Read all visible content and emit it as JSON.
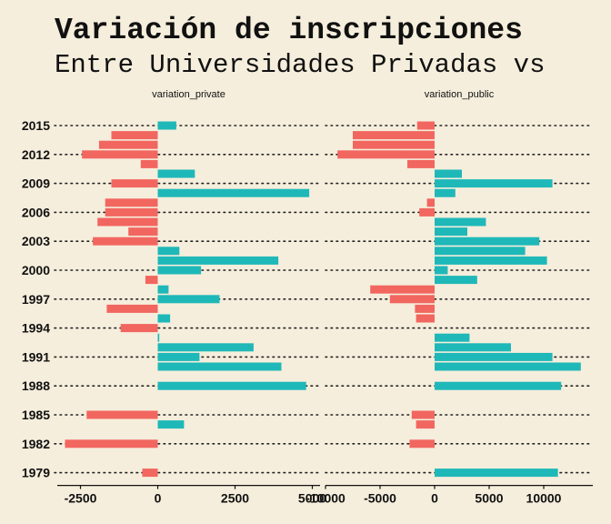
{
  "chart_data": {
    "type": "bar",
    "orientation": "horizontal",
    "title": "Variación de inscripciones",
    "subtitle": "Entre Universidades Privadas vs",
    "y": [
      2015,
      2014,
      2013,
      2012,
      2011,
      2010,
      2009,
      2008,
      2007,
      2006,
      2005,
      2004,
      2003,
      2002,
      2001,
      2000,
      1999,
      1998,
      1997,
      1996,
      1995,
      1994,
      1993,
      1992,
      1991,
      1990,
      1989,
      1988,
      1987,
      1986,
      1985,
      1984,
      1983,
      1982,
      1981,
      1980,
      1979
    ],
    "y_ticks": [
      2015,
      2012,
      2009,
      2006,
      2003,
      2000,
      1997,
      1994,
      1991,
      1988,
      1985,
      1982,
      1979
    ],
    "grid": "horizontal dotted",
    "colors": {
      "positive": "#1fb8b8",
      "negative": "#f26660"
    },
    "facets": [
      {
        "label": "variation_private",
        "xlim": [
          -3250,
          5250
        ],
        "x_ticks": [
          -2500,
          0,
          2500,
          5000
        ],
        "x_tick_labels": [
          "-2500",
          "0",
          "2500",
          "5000"
        ],
        "values": [
          600,
          -1500,
          -1900,
          -2450,
          -550,
          1200,
          -1500,
          4900,
          -1700,
          -1700,
          -1950,
          -950,
          -2100,
          700,
          3900,
          1400,
          -400,
          350,
          2000,
          -1650,
          400,
          -1200,
          50,
          3100,
          1350,
          4000,
          null,
          4800,
          null,
          null,
          -2300,
          850,
          null,
          -3000,
          null,
          null,
          -500
        ]
      },
      {
        "label": "variation_public",
        "xlim": [
          -10000,
          14500
        ],
        "x_ticks": [
          -10000,
          -5000,
          0,
          5000,
          10000
        ],
        "x_tick_labels": [
          "-10000",
          "-5000",
          "0",
          "5000",
          "10000"
        ],
        "values": [
          -1600,
          -7500,
          -7500,
          -8900,
          -2500,
          2500,
          10800,
          1900,
          -700,
          -1400,
          4700,
          3000,
          9600,
          8300,
          10300,
          1200,
          3900,
          -5900,
          -4100,
          -1800,
          -1700,
          null,
          3200,
          7000,
          10800,
          13400,
          null,
          11600,
          null,
          null,
          -2100,
          -1700,
          null,
          -2300,
          null,
          null,
          11300
        ]
      }
    ]
  }
}
